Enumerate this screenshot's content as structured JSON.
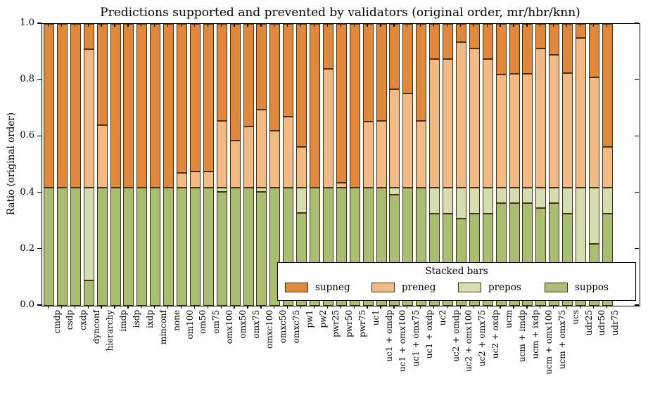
{
  "chart_data": {
    "type": "bar",
    "stacked": true,
    "title": "Predictions supported and prevented by validators (original order, mr/hbr/knn)",
    "ylabel": "Ratio (original order)",
    "xlabel": "",
    "ylim": [
      0.0,
      1.0
    ],
    "yticks": [
      {
        "value": 0.0,
        "label": "0.0"
      },
      {
        "value": 0.2,
        "label": "0.2"
      },
      {
        "value": 0.4,
        "label": "0.4"
      },
      {
        "value": 0.6,
        "label": "0.6"
      },
      {
        "value": 0.8,
        "label": "0.8"
      },
      {
        "value": 1.0,
        "label": "1.0"
      }
    ],
    "grid": false,
    "legend": {
      "title": "Stacked bars",
      "position": "lower right",
      "order": [
        "supneg",
        "preneg",
        "prepos",
        "suppos"
      ]
    },
    "edge_color": "#45300f",
    "categories": [
      "cmdp",
      "csdp",
      "cxdp",
      "dynconf",
      "hierarchy",
      "imdp",
      "isdp",
      "ixdp",
      "minconf",
      "none",
      "om100",
      "om50",
      "om75",
      "omx100",
      "omx50",
      "omx75",
      "omxc100",
      "omxc50",
      "omxc75",
      "pw1",
      "pw2",
      "pwr25",
      "pwr50",
      "pwr75",
      "uc1",
      "uc1 + omdp",
      "uc1 + omx100",
      "uc1 + omx75",
      "uc1 + oxdp",
      "uc2",
      "uc2 + omdp",
      "uc2 + omx100",
      "uc2 + omx75",
      "uc2 + oxdp",
      "ucm",
      "ucm + imdp",
      "ucm + ixdp",
      "ucm + omx100",
      "ucm + omx75",
      "ucs",
      "udr25",
      "udr50",
      "udr75"
    ],
    "series": [
      {
        "name": "suppos",
        "color": "#a9bd73",
        "values": [
          0.42,
          0.42,
          0.42,
          0.09,
          0.42,
          0.42,
          0.42,
          0.42,
          0.42,
          0.42,
          0.42,
          0.42,
          0.42,
          0.403,
          0.42,
          0.42,
          0.405,
          0.42,
          0.42,
          0.33,
          0.42,
          0.42,
          0.42,
          0.42,
          0.42,
          0.42,
          0.395,
          0.42,
          0.42,
          0.327,
          0.327,
          0.309,
          0.327,
          0.327,
          0.363,
          0.363,
          0.363,
          0.346,
          0.363,
          0.327,
          0.11,
          0.22,
          0.327
        ]
      },
      {
        "name": "prepos",
        "color": "#d4deb2",
        "values": [
          0,
          0,
          0,
          0.33,
          0,
          0,
          0,
          0,
          0,
          0,
          0,
          0,
          0,
          0.017,
          0,
          0,
          0.015,
          0,
          0,
          0.09,
          0,
          0,
          0,
          0,
          0,
          0,
          0.025,
          0,
          0,
          0.093,
          0.093,
          0.111,
          0.093,
          0.093,
          0.057,
          0.057,
          0.057,
          0.074,
          0.057,
          0.093,
          0.31,
          0.2,
          0.093
        ]
      },
      {
        "name": "preneg",
        "color": "#f2bb85",
        "values": [
          0,
          0,
          0,
          0.49,
          0.22,
          0,
          0,
          0,
          0,
          0,
          0.052,
          0.056,
          0.056,
          0.235,
          0.166,
          0.217,
          0.275,
          0.2,
          0.252,
          0.143,
          0,
          0.42,
          0.017,
          0,
          0.233,
          0.235,
          0.347,
          0.332,
          0.235,
          0.455,
          0.455,
          0.514,
          0.493,
          0.455,
          0.401,
          0.403,
          0.403,
          0.492,
          0.47,
          0.405,
          0.53,
          0.39,
          0.144
        ]
      },
      {
        "name": "supneg",
        "color": "#e0883e",
        "values": [
          0.58,
          0.58,
          0.58,
          0.09,
          0.36,
          0.58,
          0.58,
          0.58,
          0.58,
          0.58,
          0.528,
          0.524,
          0.524,
          0.345,
          0.414,
          0.363,
          0.305,
          0.38,
          0.328,
          0.437,
          0.58,
          0.16,
          0.563,
          0.58,
          0.347,
          0.345,
          0.233,
          0.248,
          0.345,
          0.125,
          0.125,
          0.066,
          0.087,
          0.125,
          0.179,
          0.177,
          0.177,
          0.088,
          0.11,
          0.175,
          0.05,
          0.19,
          0.436
        ]
      }
    ]
  }
}
